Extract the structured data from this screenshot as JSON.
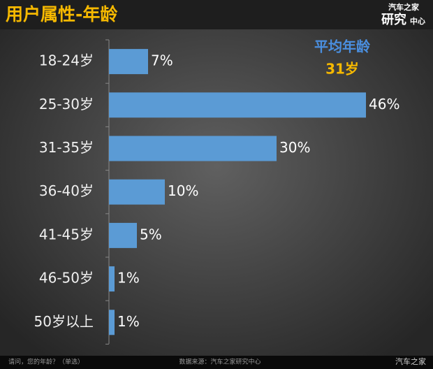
{
  "chart_data": {
    "type": "bar",
    "orientation": "horizontal",
    "title": "用户属性-年龄",
    "categories": [
      "18-24岁",
      "25-30岁",
      "31-35岁",
      "36-40岁",
      "41-45岁",
      "46-50岁",
      "50岁以上"
    ],
    "values": [
      7,
      46,
      30,
      10,
      5,
      1,
      1
    ],
    "value_labels": [
      "7%",
      "46%",
      "30%",
      "10%",
      "5%",
      "1%",
      "1%"
    ],
    "color": "#5b9bd5",
    "annotation": {
      "label": "平均年龄",
      "value": "31岁"
    },
    "question": "请问，您的年龄？（单选）",
    "source": "数据来源：汽车之家研究中心"
  },
  "branding": {
    "logo_top": "汽车之家",
    "logo_big": "研究",
    "logo_small": "中心",
    "watermark": "汽车之家"
  }
}
